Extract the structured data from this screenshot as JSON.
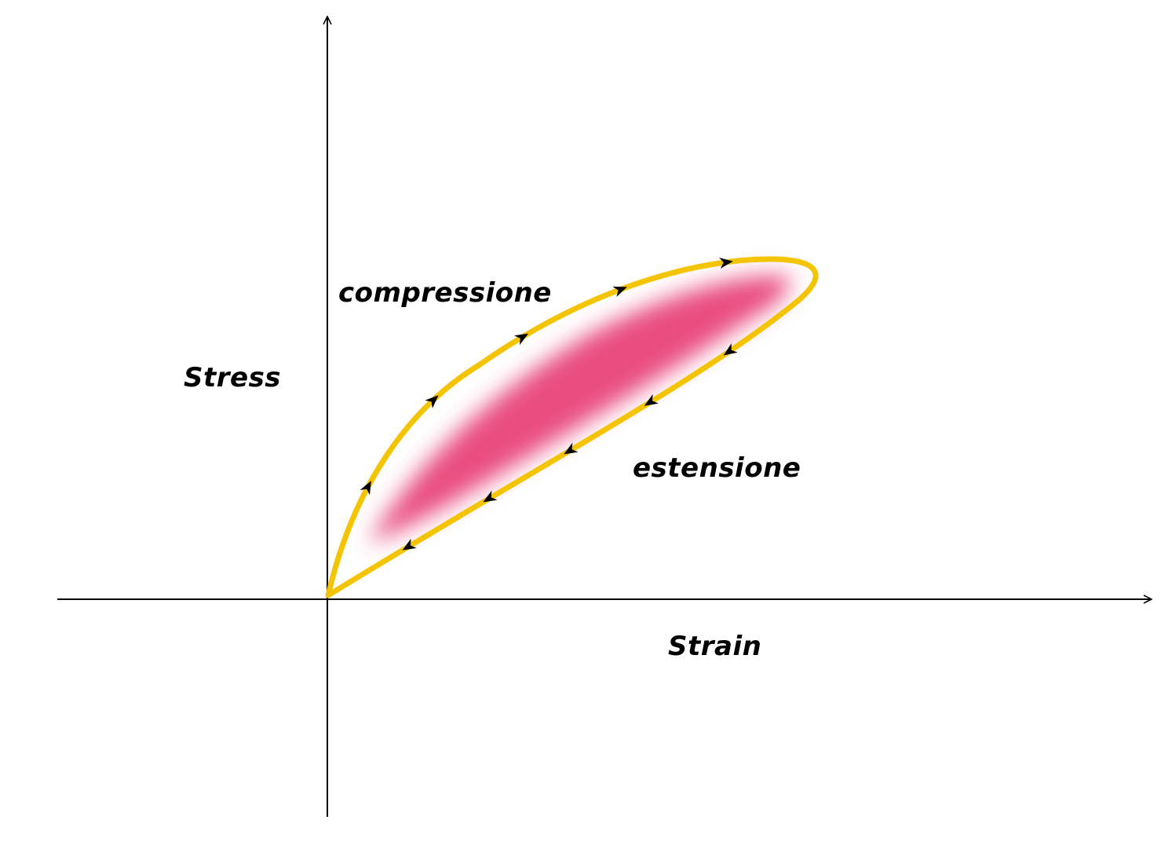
{
  "labels": {
    "y_axis": "Stress",
    "x_axis": "Strain",
    "loading_branch": "compressione",
    "unloading_branch": "estensione"
  },
  "colors": {
    "axis": "#000000",
    "loop_outline": "#f5c400",
    "loop_fill": "#e8457a",
    "arrow": "#000000",
    "background": "#ffffff"
  },
  "loop": {
    "loading_branch_arrow_count": 5,
    "unloading_branch_arrow_count": 5,
    "direction": "clockwise"
  }
}
